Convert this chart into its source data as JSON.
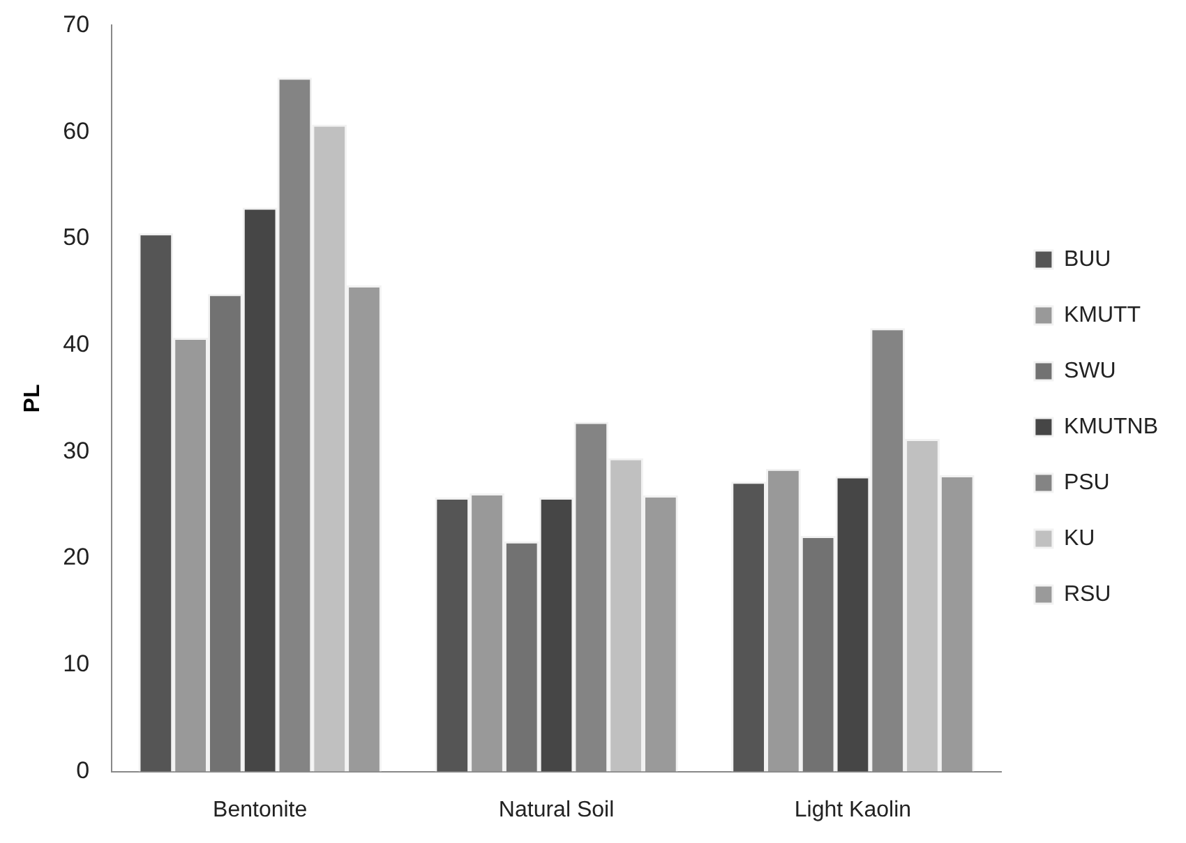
{
  "chart_data": {
    "type": "bar",
    "ylabel": "PL",
    "categories": [
      "Bentonite",
      "Natural Soil",
      "Light Kaolin"
    ],
    "series": [
      {
        "name": "BUU",
        "color": "#555555",
        "values": [
          50.5,
          25.7,
          27.2
        ]
      },
      {
        "name": "KMUTT",
        "color": "#999999",
        "values": [
          40.7,
          26.1,
          28.4
        ]
      },
      {
        "name": "SWU",
        "color": "#727272",
        "values": [
          44.8,
          21.6,
          22.1
        ]
      },
      {
        "name": "KMUTNB",
        "color": "#464646",
        "values": [
          52.9,
          25.7,
          27.7
        ]
      },
      {
        "name": "PSU",
        "color": "#848484",
        "values": [
          65.1,
          32.8,
          41.6
        ]
      },
      {
        "name": "KU",
        "color": "#c0c0c0",
        "values": [
          60.7,
          29.4,
          31.2
        ]
      },
      {
        "name": "RSU",
        "color": "#9a9a9a",
        "values": [
          45.6,
          25.9,
          27.8
        ]
      }
    ],
    "ylim": [
      0,
      70
    ],
    "yticks": [
      0,
      10,
      20,
      30,
      40,
      50,
      60,
      70
    ],
    "grid": false,
    "legend": "right"
  }
}
